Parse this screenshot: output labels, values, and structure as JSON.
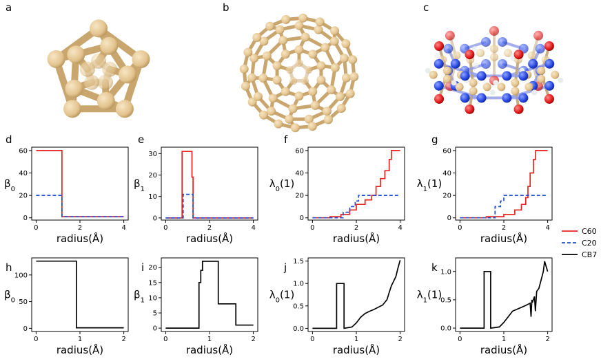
{
  "panel_labels": [
    "a",
    "b",
    "c",
    "d",
    "e",
    "f",
    "g",
    "h",
    "i",
    "j",
    "k"
  ],
  "legend": {
    "items": [
      {
        "label": "C60",
        "color": "#e8231f",
        "dash": "solid"
      },
      {
        "label": "C20",
        "color": "#1f4fdc",
        "dash": "dashed"
      },
      {
        "label": "CB7",
        "color": "#000000",
        "dash": "solid"
      }
    ]
  },
  "colors": {
    "carbon": "#e3c38e",
    "oxygen": "#e01515",
    "nitrogen": "#2443e0",
    "hydrogen": "#e8ecec"
  },
  "chart_data": [
    {
      "id": "d",
      "type": "line",
      "xlabel": "radius(Å)",
      "ylabel": "β0",
      "xlim": [
        -0.2,
        4.2
      ],
      "ylim": [
        -2,
        63
      ],
      "xticks": [
        "0",
        "2",
        "4"
      ],
      "yticks": [
        "0",
        "20",
        "40",
        "60"
      ],
      "series": [
        {
          "name": "C60",
          "x": [
            0,
            1.18,
            1.18,
            4
          ],
          "y": [
            60,
            60,
            1,
            1
          ]
        },
        {
          "name": "C20",
          "x": [
            0,
            1.18,
            1.18,
            4
          ],
          "y": [
            20,
            20,
            1,
            1
          ]
        }
      ]
    },
    {
      "id": "e",
      "type": "line",
      "xlabel": "radius(Å)",
      "ylabel": "β1",
      "xlim": [
        -0.2,
        4.2
      ],
      "ylim": [
        -1,
        33
      ],
      "xticks": [
        "0",
        "2",
        "4"
      ],
      "yticks": [
        "0",
        "10",
        "20",
        "30"
      ],
      "series": [
        {
          "name": "C60",
          "x": [
            0,
            0.75,
            0.75,
            1.2,
            1.2,
            1.25,
            1.25,
            4
          ],
          "y": [
            0,
            0,
            31,
            31,
            19,
            19,
            0,
            0
          ]
        },
        {
          "name": "C20",
          "x": [
            0,
            0.8,
            0.8,
            1.25,
            1.25,
            4
          ],
          "y": [
            0,
            0,
            11,
            11,
            0,
            0
          ]
        }
      ]
    },
    {
      "id": "f",
      "type": "line",
      "xlabel": "radius(Å)",
      "ylabel": "λ0(1)",
      "xlim": [
        -0.2,
        4.2
      ],
      "ylim": [
        -2,
        63
      ],
      "xticks": [
        "0",
        "2",
        "4"
      ],
      "yticks": [
        "0",
        "20",
        "40",
        "60"
      ],
      "series": [
        {
          "name": "C60",
          "x": [
            0,
            0.8,
            0.8,
            1.3,
            1.3,
            1.7,
            1.7,
            2.0,
            2.0,
            2.4,
            2.4,
            2.7,
            2.7,
            2.9,
            2.9,
            3.1,
            3.1,
            3.3,
            3.3,
            3.5,
            3.5,
            3.6,
            3.6,
            4
          ],
          "y": [
            0,
            0,
            1,
            1,
            3,
            3,
            7,
            7,
            12,
            12,
            16,
            16,
            20,
            20,
            28,
            28,
            35,
            35,
            42,
            42,
            52,
            52,
            60,
            60
          ]
        },
        {
          "name": "C20",
          "x": [
            0,
            1.4,
            1.4,
            1.7,
            1.7,
            1.95,
            1.95,
            2.1,
            2.1,
            4
          ],
          "y": [
            0,
            0,
            5,
            5,
            10,
            10,
            15,
            15,
            20,
            20
          ]
        }
      ]
    },
    {
      "id": "g",
      "type": "line",
      "xlabel": "radius(Å)",
      "ylabel": "λ1(1)",
      "xlim": [
        -0.2,
        4.2
      ],
      "ylim": [
        -2,
        63
      ],
      "xticks": [
        "0",
        "2",
        "4"
      ],
      "yticks": [
        "0",
        "20",
        "40",
        "60"
      ],
      "series": [
        {
          "name": "C60",
          "x": [
            0,
            1.2,
            1.2,
            2.0,
            2.0,
            2.5,
            2.5,
            2.8,
            2.8,
            3.0,
            3.0,
            3.1,
            3.1,
            3.2,
            3.2,
            3.35,
            3.35,
            3.45,
            3.45,
            4
          ],
          "y": [
            0,
            0,
            1,
            1,
            3,
            3,
            7,
            7,
            12,
            12,
            18,
            18,
            28,
            28,
            40,
            40,
            52,
            52,
            60,
            60
          ]
        },
        {
          "name": "C20",
          "x": [
            0,
            1.6,
            1.6,
            1.85,
            1.85,
            2.0,
            2.0,
            4
          ],
          "y": [
            0,
            0,
            10,
            10,
            15,
            15,
            20,
            20
          ]
        }
      ]
    },
    {
      "id": "h",
      "type": "line",
      "xlabel": "radius(Å)",
      "ylabel": "β0",
      "xlim": [
        -0.1,
        2.1
      ],
      "ylim": [
        -6,
        132
      ],
      "xticks": [
        "0",
        "1",
        "2"
      ],
      "yticks": [
        "0",
        "50",
        "100"
      ],
      "series": [
        {
          "name": "CB7",
          "x": [
            0,
            0.92,
            0.92,
            2
          ],
          "y": [
            126,
            126,
            1,
            1
          ]
        }
      ]
    },
    {
      "id": "i",
      "type": "line",
      "xlabel": "radius(Å)",
      "ylabel": "β1",
      "xlim": [
        -0.1,
        2.1
      ],
      "ylim": [
        -1.1,
        23.1
      ],
      "xticks": [
        "0",
        "1",
        "2"
      ],
      "yticks": [
        "0",
        "5",
        "10",
        "15",
        "20"
      ],
      "series": [
        {
          "name": "CB7",
          "x": [
            0,
            0.76,
            0.76,
            0.8,
            0.8,
            0.84,
            0.84,
            1.2,
            1.2,
            1.6,
            1.6,
            2
          ],
          "y": [
            0,
            0,
            15,
            15,
            19,
            19,
            22,
            22,
            8,
            8,
            1,
            1
          ]
        }
      ]
    },
    {
      "id": "j",
      "type": "line",
      "xlabel": "radius(Å)",
      "ylabel": "λ0(1)",
      "xlim": [
        -0.1,
        2.1
      ],
      "ylim": [
        -0.07,
        1.57
      ],
      "xticks": [
        "0",
        "1",
        "2"
      ],
      "yticks": [
        "0.0",
        "0.5",
        "1.0",
        "1.5"
      ],
      "series": [
        {
          "name": "CB7",
          "x": [
            0,
            0.55,
            0.55,
            0.72,
            0.72,
            0.9,
            1.0,
            1.1,
            1.2,
            1.3,
            1.4,
            1.5,
            1.6,
            1.7,
            1.75,
            1.8,
            1.85,
            1.9,
            1.95,
            2.0
          ],
          "y": [
            0,
            0,
            1.0,
            1.0,
            0,
            0.03,
            0.12,
            0.25,
            0.33,
            0.38,
            0.42,
            0.47,
            0.52,
            0.64,
            0.8,
            0.95,
            1.05,
            1.15,
            1.35,
            1.52
          ]
        }
      ]
    },
    {
      "id": "k",
      "type": "line",
      "xlabel": "radius(Å)",
      "ylabel": "λ1(1)",
      "xlim": [
        -0.1,
        2.1
      ],
      "ylim": [
        -0.06,
        1.24
      ],
      "xticks": [
        "0",
        "1",
        "2"
      ],
      "yticks": [
        "0.0",
        "0.5",
        "1.0"
      ],
      "series": [
        {
          "name": "CB7",
          "x": [
            0,
            0.55,
            0.55,
            0.7,
            0.7,
            0.9,
            1.0,
            1.1,
            1.2,
            1.35,
            1.5,
            1.6,
            1.62,
            1.64,
            1.65,
            1.7,
            1.72,
            1.75,
            1.8,
            1.85,
            1.9,
            1.93,
            1.96,
            2.0
          ],
          "y": [
            0,
            0,
            1.0,
            1.0,
            0,
            0.02,
            0.1,
            0.2,
            0.3,
            0.35,
            0.4,
            0.44,
            0.2,
            0.5,
            0.45,
            0.56,
            0.3,
            0.65,
            0.7,
            0.85,
            1.0,
            1.18,
            1.1,
            1.0
          ]
        }
      ]
    }
  ]
}
